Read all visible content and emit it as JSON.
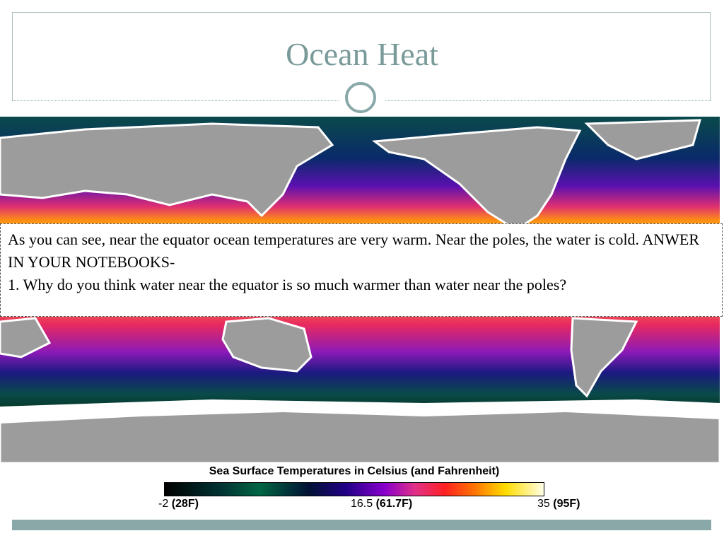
{
  "header": {
    "title": "Ocean Heat"
  },
  "textbox": {
    "paragraphs": [
      "As you can see, near the equator ocean temperatures are very warm. Near the poles, the water is cold. ANWER IN YOUR NOTEBOOKS-",
      "1. Why do you think water near the equator is so much warmer than water near the poles?"
    ]
  },
  "legend": {
    "title": "Sea Surface Temperatures in Celsius (and Fahrenheit)",
    "min": {
      "value": "-2",
      "unit": "(28F)"
    },
    "mid": {
      "value": "16.5",
      "unit": "(61.7F)"
    },
    "max": {
      "value": "35",
      "unit": "(95F)"
    }
  }
}
